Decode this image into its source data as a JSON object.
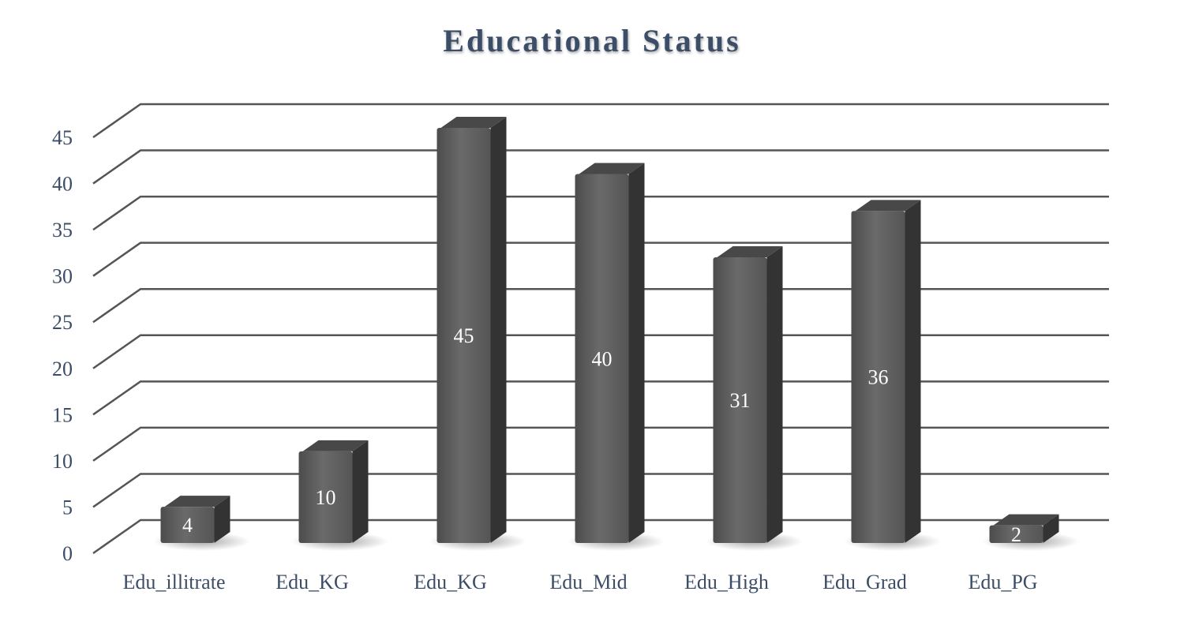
{
  "chart_data": {
    "type": "bar",
    "title": "Educational Status",
    "categories": [
      "Edu_illitrate",
      "Edu_KG",
      "Edu_KG",
      "Edu_Mid",
      "Edu_High",
      "Edu_Grad",
      "Edu_PG"
    ],
    "values": [
      4,
      10,
      45,
      40,
      31,
      36,
      2
    ],
    "ylim": [
      0,
      45
    ],
    "yticks": [
      0,
      5,
      10,
      15,
      20,
      25,
      30,
      35,
      40,
      45
    ],
    "xlabel": "",
    "ylabel": "",
    "grid": true,
    "legend": "none",
    "style": "3d-column",
    "colors": {
      "bar_front": "#5a5a5a",
      "bar_side": "#333333",
      "bar_top": "#484848",
      "grid": "#555555",
      "text": "#3c4d68"
    }
  }
}
